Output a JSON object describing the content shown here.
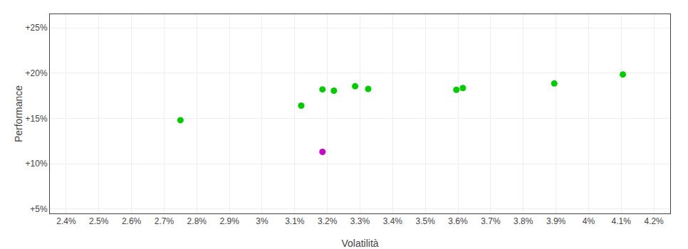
{
  "chart_data": {
    "type": "scatter",
    "xlabel": "Volatilità",
    "ylabel": "Performance",
    "series": [
      {
        "x": [
          2.75,
          3.12,
          3.185,
          3.22,
          3.285,
          3.325,
          3.595,
          3.615,
          3.895,
          4.105
        ],
        "values": [
          14.8,
          16.4,
          18.2,
          18.05,
          18.55,
          18.25,
          18.15,
          18.35,
          18.85,
          19.85
        ],
        "color": "#00cc00"
      },
      {
        "x": [
          3.185
        ],
        "values": [
          11.3
        ],
        "color": "#cc00cc"
      }
    ],
    "xlim": [
      2.35,
      4.25
    ],
    "xticks": [
      {
        "value": 2.4,
        "label": "2.4%"
      },
      {
        "value": 2.5,
        "label": "2.5%"
      },
      {
        "value": 2.6,
        "label": "2.6%"
      },
      {
        "value": 2.7,
        "label": "2.7%"
      },
      {
        "value": 2.8,
        "label": "2.8%"
      },
      {
        "value": 2.9,
        "label": "2.9%"
      },
      {
        "value": 3.0,
        "label": "3%"
      },
      {
        "value": 3.1,
        "label": "3.1%"
      },
      {
        "value": 3.2,
        "label": "3.2%"
      },
      {
        "value": 3.3,
        "label": "3.3%"
      },
      {
        "value": 3.4,
        "label": "3.4%"
      },
      {
        "value": 3.5,
        "label": "3.5%"
      },
      {
        "value": 3.6,
        "label": "3.6%"
      },
      {
        "value": 3.7,
        "label": "3.7%"
      },
      {
        "value": 3.8,
        "label": "3.8%"
      },
      {
        "value": 3.9,
        "label": "3.9%"
      },
      {
        "value": 4.0,
        "label": "4%"
      },
      {
        "value": 4.1,
        "label": "4.1%"
      },
      {
        "value": 4.2,
        "label": "4.2%"
      }
    ],
    "ylim": [
      4.5,
      26.5
    ],
    "yticks": [
      {
        "value": 5,
        "label": "+5%"
      },
      {
        "value": 10,
        "label": "+10%"
      },
      {
        "value": 15,
        "label": "+15%"
      },
      {
        "value": 20,
        "label": "+20%"
      },
      {
        "value": 25,
        "label": "+25%"
      }
    ],
    "grid": true
  }
}
